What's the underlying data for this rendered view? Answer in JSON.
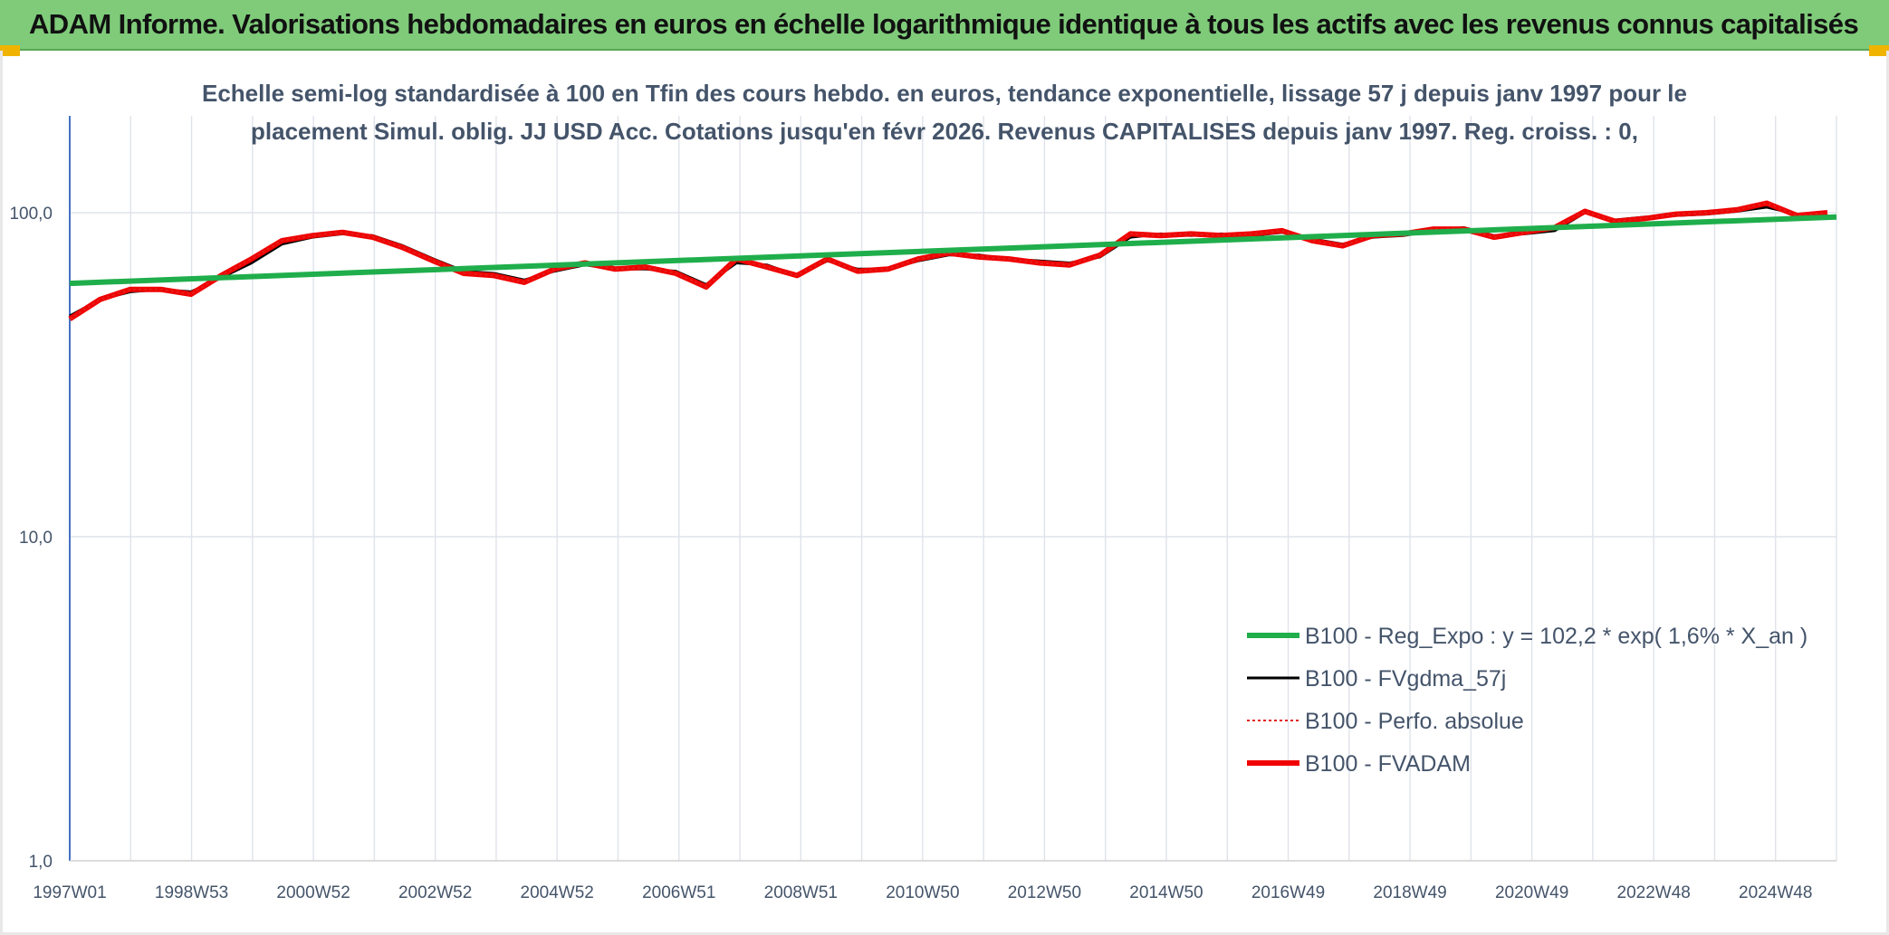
{
  "header": {
    "title": "ADAM Informe. Valorisations hebdomadaires en euros en échelle logarithmique identique à tous les actifs avec les revenus connus capitalisés",
    "background": "#7fcb7a"
  },
  "chart_data": {
    "type": "line",
    "title_lines": [
      "Echelle semi-log standardisée à 100 en Tfin des cours hebdo. en euros, tendance exponentielle, lissage 57 j depuis janv 1997 pour le",
      "placement Simul. oblig. JJ USD Acc. Cotations jusqu'en févr 2026. Revenus CAPITALISES depuis janv 1997. Reg. croiss. : 0,"
    ],
    "y_scale": "log",
    "ylim": [
      1,
      200
    ],
    "y_ticks": [
      {
        "value": 1,
        "label": "1,0"
      },
      {
        "value": 10,
        "label": "10,0"
      },
      {
        "value": 100,
        "label": "100,0"
      }
    ],
    "x_range": [
      1997.0,
      2026.15
    ],
    "x_tick_labels": [
      "1997W01",
      "1998W53",
      "2000W52",
      "2002W52",
      "2004W52",
      "2006W51",
      "2008W51",
      "2010W50",
      "2012W50",
      "2014W50",
      "2016W49",
      "2018W49",
      "2020W49",
      "2022W48",
      "2024W48"
    ],
    "grid": "vertical lines",
    "legend_position": "bottom-right",
    "series": [
      {
        "name": "B100 - Reg_Expo : y = 102,2 * exp( 1,6% *  X_an )",
        "color": "#1fae4b",
        "style": "solid-thick",
        "x": [
          1997.0,
          2026.15
        ],
        "values": [
          60.5,
          97
        ]
      },
      {
        "name": "B100 - FVgdma_57j",
        "color": "#000000",
        "style": "solid",
        "x": [
          1997.0,
          1997.5,
          1998.0,
          1998.5,
          1999.0,
          1999.5,
          2000.0,
          2000.5,
          2001.0,
          2001.5,
          2002.0,
          2002.5,
          2003.0,
          2003.5,
          2004.0,
          2004.5,
          2005.0,
          2005.5,
          2006.0,
          2006.5,
          2007.0,
          2007.5,
          2008.0,
          2008.5,
          2009.0,
          2009.5,
          2010.0,
          2010.5,
          2011.0,
          2011.5,
          2012.0,
          2012.5,
          2013.0,
          2013.5,
          2014.0,
          2014.5,
          2015.0,
          2015.5,
          2016.0,
          2016.5,
          2017.0,
          2017.5,
          2018.0,
          2018.5,
          2019.0,
          2019.5,
          2020.0,
          2020.5,
          2021.0,
          2021.5,
          2022.0,
          2022.5,
          2023.0,
          2023.5,
          2024.0,
          2024.5,
          2025.0,
          2025.5,
          2026.0
        ],
        "values": [
          48,
          54,
          57,
          58,
          57,
          63,
          70,
          80,
          84,
          86,
          85,
          79,
          72,
          66,
          65,
          62,
          66,
          69,
          67,
          67,
          66,
          60,
          70,
          69,
          64,
          71,
          67,
          67,
          71,
          74,
          74,
          72,
          71,
          70,
          73,
          84,
          86,
          85,
          86,
          85,
          87,
          83,
          80,
          84,
          85,
          88,
          90,
          85,
          86,
          88,
          100,
          95,
          97,
          98,
          99,
          101,
          104,
          99,
          100
        ]
      },
      {
        "name": "B100 - Perfo. absolue",
        "color": "#e0201b",
        "style": "dotted",
        "x": [
          1997.0,
          2026.15
        ],
        "values": [
          48,
          100
        ]
      },
      {
        "name": "B100 - FVADAM",
        "color": "#f00000",
        "style": "solid-thick",
        "x": [
          1997.0,
          1997.5,
          1998.0,
          1998.5,
          1999.0,
          1999.5,
          2000.0,
          2000.5,
          2001.0,
          2001.5,
          2002.0,
          2002.5,
          2003.0,
          2003.5,
          2004.0,
          2004.5,
          2005.0,
          2005.5,
          2006.0,
          2006.5,
          2007.0,
          2007.5,
          2008.0,
          2008.5,
          2009.0,
          2009.5,
          2010.0,
          2010.5,
          2011.0,
          2011.5,
          2012.0,
          2012.5,
          2013.0,
          2013.5,
          2014.0,
          2014.5,
          2015.0,
          2015.5,
          2016.0,
          2016.5,
          2017.0,
          2017.5,
          2018.0,
          2018.5,
          2019.0,
          2019.5,
          2020.0,
          2020.5,
          2021.0,
          2021.5,
          2022.0,
          2022.5,
          2023.0,
          2023.5,
          2024.0,
          2024.5,
          2025.0,
          2025.5,
          2026.0
        ],
        "values": [
          47,
          54,
          58,
          58,
          56,
          64,
          72,
          82,
          85,
          87,
          84,
          78,
          71,
          65,
          64,
          61,
          67,
          70,
          67,
          68,
          65,
          59,
          72,
          68,
          64,
          72,
          66,
          67,
          72,
          75,
          73,
          72,
          70,
          69,
          74,
          86,
          85,
          86,
          85,
          86,
          88,
          82,
          79,
          85,
          86,
          89,
          89,
          84,
          87,
          90,
          101,
          94,
          96,
          99,
          100,
          102,
          107,
          98,
          100
        ]
      }
    ]
  }
}
